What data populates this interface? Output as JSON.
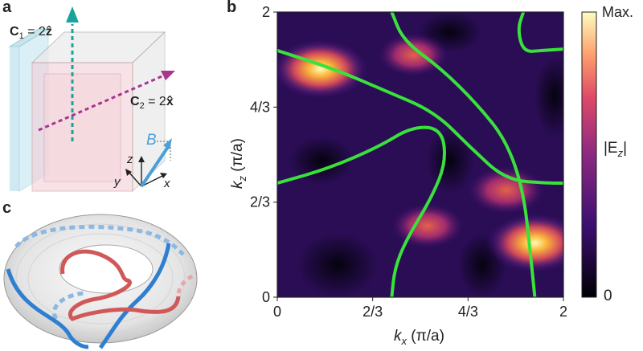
{
  "panels": {
    "a": {
      "letter": "a",
      "c1_label": "C",
      "c1_sub": "1",
      "c1_eq": "= 2",
      "c1_vec": "ẑ",
      "c2_label": "C",
      "c2_sub": "2",
      "c2_eq": "= 2",
      "c2_vec": "x̂",
      "field_label": "B",
      "axis_x": "x",
      "axis_y": "y",
      "axis_z": "z"
    },
    "b": {
      "letter": "b",
      "xlabel_k": "k",
      "xlabel_sub": "x",
      "xlabel_unit": "(π/a)",
      "ylabel_k": "k",
      "ylabel_sub": "z",
      "ylabel_unit": "(π/a)",
      "x_ticks": [
        "0",
        "2/3",
        "4/3",
        "2"
      ],
      "y_ticks": [
        "0",
        "2/3",
        "4/3",
        "2"
      ],
      "colorbar_max": "Max.",
      "colorbar_min": "0",
      "colorbar_quantity": "|E",
      "colorbar_sub": "z",
      "colorbar_close": "|"
    },
    "c": {
      "letter": "c"
    }
  },
  "colors": {
    "contour": "#39e23a",
    "c1_arrow": "#1aa39a",
    "c2_arrow": "#a8358f",
    "b_arrow": "#4a9fd8",
    "torus_blue": "#2f7fd1",
    "torus_red": "#d05858"
  },
  "chart_data": {
    "type": "heatmap",
    "xlabel": "k_x (π/a)",
    "ylabel": "k_z (π/a)",
    "xlim": [
      0,
      2
    ],
    "ylim": [
      0,
      2
    ],
    "x_ticks": [
      "0",
      "2/3",
      "4/3",
      "2"
    ],
    "y_ticks": [
      "0",
      "2/3",
      "4/3",
      "2"
    ],
    "colorbar": {
      "label": "|E_z|",
      "min": "0",
      "max": "Max."
    },
    "hot_spots": [
      {
        "x": 0.3,
        "y": 1.6,
        "intensity": 1.0
      },
      {
        "x": 1.8,
        "y": 0.38,
        "intensity": 1.0
      },
      {
        "x": 1.6,
        "y": 0.75,
        "intensity": 0.6
      },
      {
        "x": 1.05,
        "y": 0.5,
        "intensity": 0.5
      },
      {
        "x": 0.95,
        "y": 1.7,
        "intensity": 0.45
      }
    ],
    "contours": [
      {
        "points": [
          [
            0,
            1.73
          ],
          [
            0.4,
            1.6
          ],
          [
            0.75,
            1.45
          ],
          [
            1.1,
            1.3
          ],
          [
            1.35,
            1.05
          ],
          [
            1.6,
            0.82
          ],
          [
            1.9,
            0.8
          ],
          [
            2,
            0.8
          ]
        ]
      },
      {
        "points": [
          [
            0.8,
            2
          ],
          [
            0.88,
            1.8
          ],
          [
            1.15,
            1.6
          ],
          [
            1.4,
            1.35
          ],
          [
            1.6,
            1.1
          ],
          [
            1.72,
            0.75
          ],
          [
            1.77,
            0.3
          ],
          [
            1.8,
            0
          ]
        ]
      },
      {
        "points": [
          [
            1.72,
            2
          ],
          [
            1.68,
            1.88
          ],
          [
            1.72,
            1.72
          ],
          [
            1.85,
            1.73
          ],
          [
            2,
            1.74
          ]
        ]
      },
      {
        "points": [
          [
            0,
            0.8
          ],
          [
            0.35,
            0.9
          ],
          [
            0.7,
            1.05
          ],
          [
            0.95,
            1.2
          ],
          [
            1.15,
            1.18
          ],
          [
            1.18,
            0.95
          ],
          [
            1.08,
            0.7
          ],
          [
            0.9,
            0.4
          ],
          [
            0.82,
            0.2
          ],
          [
            0.8,
            0
          ]
        ]
      }
    ]
  }
}
